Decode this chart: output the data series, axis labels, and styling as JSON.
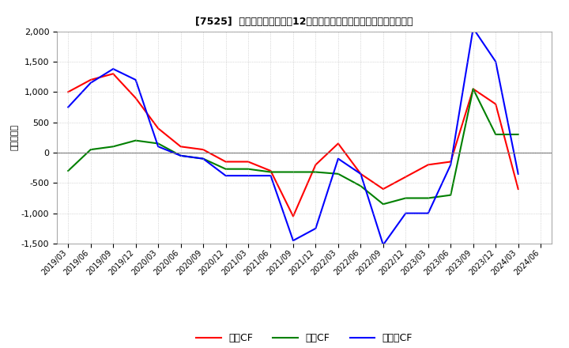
{
  "title": "[7525]  キャッシュフローの12か月移動合計の対前年同期増減額の推移",
  "ylabel": "（百万円）",
  "x_labels": [
    "2019/03",
    "2019/06",
    "2019/09",
    "2019/12",
    "2020/03",
    "2020/06",
    "2020/09",
    "2020/12",
    "2021/03",
    "2021/06",
    "2021/09",
    "2021/12",
    "2022/03",
    "2022/06",
    "2022/09",
    "2022/12",
    "2023/03",
    "2023/06",
    "2023/09",
    "2023/12",
    "2024/03",
    "2024/06"
  ],
  "operating_cf": [
    1000,
    1200,
    1300,
    900,
    400,
    100,
    50,
    -150,
    -150,
    -300,
    -1050,
    -200,
    150,
    -350,
    -600,
    -400,
    -200,
    -150,
    1050,
    800,
    -600,
    null
  ],
  "investing_cf": [
    -300,
    50,
    100,
    200,
    150,
    -50,
    -100,
    -270,
    -270,
    -320,
    -320,
    -320,
    -350,
    -550,
    -850,
    -750,
    -750,
    -700,
    1050,
    300,
    300,
    null
  ],
  "free_cf": [
    750,
    1150,
    1380,
    1200,
    100,
    -50,
    -100,
    -380,
    -380,
    -380,
    -1450,
    -1250,
    -100,
    -350,
    -1520,
    -1000,
    -1000,
    -200,
    2050,
    1500,
    -350,
    null
  ],
  "operating_color": "#ff0000",
  "investing_color": "#008000",
  "free_color": "#0000ff",
  "ylim": [
    -1500,
    2000
  ],
  "yticks": [
    -1500,
    -1000,
    -500,
    0,
    500,
    1000,
    1500,
    2000
  ],
  "bg_color": "#ffffff",
  "grid_color": "#aaaaaa",
  "line_width": 1.5,
  "legend_labels": [
    "営業CF",
    "投資CF",
    "フリーCF"
  ]
}
